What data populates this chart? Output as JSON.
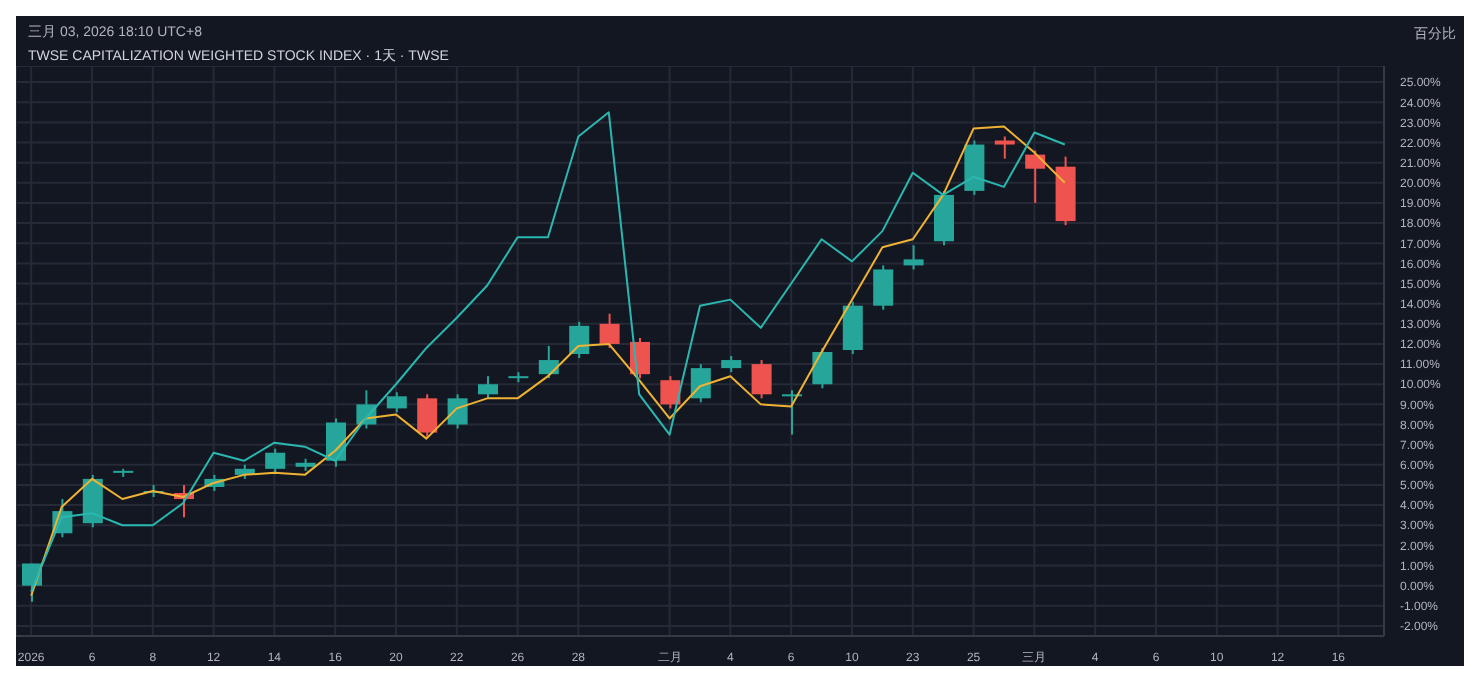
{
  "chart_data": {
    "type": "candlestick",
    "title": "TWSE CAPITALIZATION WEIGHTED STOCK INDEX · 1天 · TWSE",
    "subtitle": "三月 03, 2026 18:10 UTC+8",
    "ylabel": "百分比",
    "categories": [
      "2026",
      null,
      "6",
      null,
      "8",
      null,
      "12",
      null,
      "14",
      null,
      "16",
      null,
      "20",
      null,
      "22",
      null,
      "26",
      null,
      "28",
      null,
      null,
      "二月",
      null,
      "4",
      null,
      "6",
      null,
      "10",
      null,
      "23",
      null,
      "25",
      null,
      "三月",
      null,
      "4",
      null,
      "6",
      null,
      "10",
      null,
      "12",
      null,
      "16",
      null
    ],
    "ohlc": [
      [
        0.0,
        1.1,
        -0.8,
        1.1
      ],
      [
        2.6,
        4.3,
        2.4,
        3.7
      ],
      [
        3.1,
        5.5,
        2.9,
        5.3
      ],
      [
        5.6,
        5.8,
        5.4,
        5.7
      ],
      [
        4.6,
        5.0,
        4.4,
        4.7
      ],
      [
        4.6,
        5.0,
        3.4,
        4.3
      ],
      [
        4.9,
        5.5,
        4.7,
        5.3
      ],
      [
        5.5,
        6.0,
        5.3,
        5.8
      ],
      [
        5.8,
        6.8,
        5.6,
        6.6
      ],
      [
        5.9,
        6.3,
        5.7,
        6.1
      ],
      [
        6.2,
        8.3,
        5.9,
        8.1
      ],
      [
        8.0,
        9.7,
        7.8,
        9.0
      ],
      [
        8.8,
        9.6,
        8.6,
        9.4
      ],
      [
        9.3,
        9.5,
        7.4,
        7.6
      ],
      [
        8.0,
        9.5,
        7.8,
        9.3
      ],
      [
        9.5,
        10.4,
        9.3,
        10.0
      ],
      [
        10.3,
        10.6,
        10.1,
        10.4
      ],
      [
        10.5,
        11.9,
        10.3,
        11.2
      ],
      [
        11.5,
        13.1,
        11.3,
        12.9
      ],
      [
        13.0,
        13.5,
        11.8,
        12.0
      ],
      [
        12.1,
        12.3,
        10.3,
        10.5
      ],
      [
        10.2,
        10.4,
        8.8,
        9.0
      ],
      [
        9.3,
        11.0,
        9.1,
        10.8
      ],
      [
        10.8,
        11.4,
        10.6,
        11.2
      ],
      [
        11.0,
        11.2,
        9.3,
        9.5
      ],
      [
        9.4,
        9.7,
        7.5,
        9.5
      ],
      [
        10.0,
        11.8,
        9.8,
        11.6
      ],
      [
        11.7,
        14.1,
        11.5,
        13.9
      ],
      [
        13.9,
        15.9,
        13.7,
        15.7
      ],
      [
        15.9,
        16.9,
        15.7,
        16.2
      ],
      [
        17.1,
        19.6,
        16.9,
        19.4
      ],
      [
        19.6,
        22.1,
        19.4,
        21.9
      ],
      [
        22.1,
        22.3,
        21.2,
        21.9
      ],
      [
        21.4,
        21.6,
        19.0,
        20.7
      ],
      [
        20.8,
        21.3,
        17.9,
        18.1
      ],
      null,
      null,
      null,
      null,
      null,
      null,
      null,
      null,
      null,
      null
    ],
    "colors": [
      "#26a69a",
      "#26a69a",
      "#26a69a",
      "#26a69a",
      "#26a69a",
      "#ef5350",
      "#26a69a",
      "#26a69a",
      "#26a69a",
      "#26a69a",
      "#26a69a",
      "#26a69a",
      "#26a69a",
      "#ef5350",
      "#26a69a",
      "#26a69a",
      "#26a69a",
      "#26a69a",
      "#26a69a",
      "#ef5350",
      "#ef5350",
      "#ef5350",
      "#26a69a",
      "#26a69a",
      "#ef5350",
      "#26a69a",
      "#26a69a",
      "#26a69a",
      "#26a69a",
      "#26a69a",
      "#26a69a",
      "#26a69a",
      "#ef5350",
      "#ef5350",
      "#ef5350",
      null,
      null,
      null,
      null,
      null,
      null,
      null,
      null,
      null,
      null
    ],
    "series": [
      {
        "type": "line",
        "color": "#f0b232",
        "values": [
          -0.5,
          3.9,
          5.3,
          4.3,
          4.7,
          4.4,
          5.1,
          5.5,
          5.6,
          5.5,
          6.7,
          8.3,
          8.5,
          7.3,
          8.8,
          9.3,
          9.3,
          10.4,
          11.9,
          12.0,
          10.2,
          8.3,
          9.9,
          10.4,
          9.0,
          8.9,
          11.6,
          14.2,
          16.8,
          17.2,
          19.4,
          22.7,
          22.8,
          21.5,
          20.0,
          null,
          null,
          null,
          null,
          null,
          null,
          null,
          null,
          null,
          null
        ]
      },
      {
        "type": "line",
        "color": "#2ab7b0",
        "values": [
          -0.3,
          3.4,
          3.6,
          3.0,
          3.0,
          4.1,
          6.6,
          6.2,
          7.1,
          6.9,
          6.2,
          8.3,
          10.0,
          11.8,
          13.3,
          14.9,
          17.3,
          17.3,
          22.3,
          23.5,
          9.5,
          7.5,
          13.9,
          14.2,
          12.8,
          15.0,
          17.2,
          16.1,
          17.6,
          20.5,
          19.4,
          20.3,
          19.8,
          22.5,
          21.9,
          null,
          null,
          null,
          null,
          null,
          null,
          null,
          null,
          null,
          null
        ]
      }
    ],
    "ylim": [
      -2.5,
      25.8
    ],
    "yticks": [
      {
        "value": -2,
        "label": "-2.00%"
      },
      {
        "value": -1,
        "label": "-1.00%"
      },
      {
        "value": 0,
        "label": "0.00%"
      },
      {
        "value": 1,
        "label": "1.00%"
      },
      {
        "value": 2,
        "label": "2.00%"
      },
      {
        "value": 3,
        "label": "3.00%"
      },
      {
        "value": 4,
        "label": "4.00%"
      },
      {
        "value": 5,
        "label": "5.00%"
      },
      {
        "value": 6,
        "label": "6.00%"
      },
      {
        "value": 7,
        "label": "7.00%"
      },
      {
        "value": 8,
        "label": "8.00%"
      },
      {
        "value": 9,
        "label": "9.00%"
      },
      {
        "value": 10,
        "label": "10.00%"
      },
      {
        "value": 11,
        "label": "11.00%"
      },
      {
        "value": 12,
        "label": "12.00%"
      },
      {
        "value": 13,
        "label": "13.00%"
      },
      {
        "value": 14,
        "label": "14.00%"
      },
      {
        "value": 15,
        "label": "15.00%"
      },
      {
        "value": 16,
        "label": "16.00%"
      },
      {
        "value": 17,
        "label": "17.00%"
      },
      {
        "value": 18,
        "label": "18.00%"
      },
      {
        "value": 19,
        "label": "19.00%"
      },
      {
        "value": 20,
        "label": "20.00%"
      },
      {
        "value": 21,
        "label": "21.00%"
      },
      {
        "value": 22,
        "label": "22.00%"
      },
      {
        "value": 23,
        "label": "23.00%"
      },
      {
        "value": 24,
        "label": "24.00%"
      },
      {
        "value": 25,
        "label": "25.00%"
      }
    ],
    "grid": true,
    "marker": "none",
    "line_style": "solid"
  }
}
